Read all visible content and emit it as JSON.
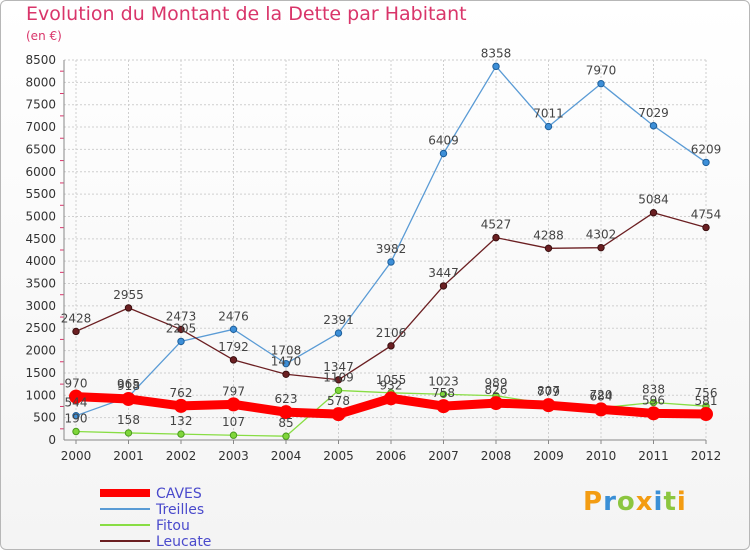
{
  "header": {
    "title": "Evolution du Montant de la Dette par Habitant",
    "unit": "(en €)"
  },
  "logo": {
    "text": "Proxiti"
  },
  "colors": {
    "CAVES": "#ff0000",
    "Treilles": "#5a9bd5",
    "Fitou": "#88dd44",
    "Leucate": "#6b1f22",
    "grid": "#cfcfcf",
    "axis": "#888888"
  },
  "chart_data": {
    "type": "line",
    "title": "Evolution du Montant de la Dette par Habitant",
    "ylabel": "(en €)",
    "xlabel": "",
    "categories": [
      "2000",
      "2001",
      "2002",
      "2003",
      "2004",
      "2005",
      "2006",
      "2007",
      "2008",
      "2009",
      "2010",
      "2011",
      "2012"
    ],
    "ylim": [
      0,
      8500
    ],
    "yticks": [
      0,
      500,
      1000,
      1500,
      2000,
      2500,
      3000,
      3500,
      4000,
      4500,
      5000,
      5500,
      6000,
      6500,
      7000,
      7500,
      8000,
      8500
    ],
    "legend_position": "bottom-left",
    "series": [
      {
        "name": "CAVES",
        "values": [
          970,
          918,
          762,
          797,
          623,
          578,
          932,
          758,
          826,
          779,
          684,
          596,
          581
        ]
      },
      {
        "name": "Treilles",
        "values": [
          544,
          965,
          2205,
          2476,
          1708,
          2391,
          3982,
          6409,
          8358,
          7011,
          7970,
          7029,
          6209
        ]
      },
      {
        "name": "Fitou",
        "values": [
          190,
          158,
          132,
          107,
          85,
          1109,
          1055,
          1023,
          989,
          807,
          720,
          838,
          756
        ]
      },
      {
        "name": "Leucate",
        "values": [
          2428,
          2955,
          2473,
          1792,
          1470,
          1347,
          2106,
          3447,
          4527,
          4288,
          4302,
          5084,
          4754
        ]
      }
    ]
  }
}
